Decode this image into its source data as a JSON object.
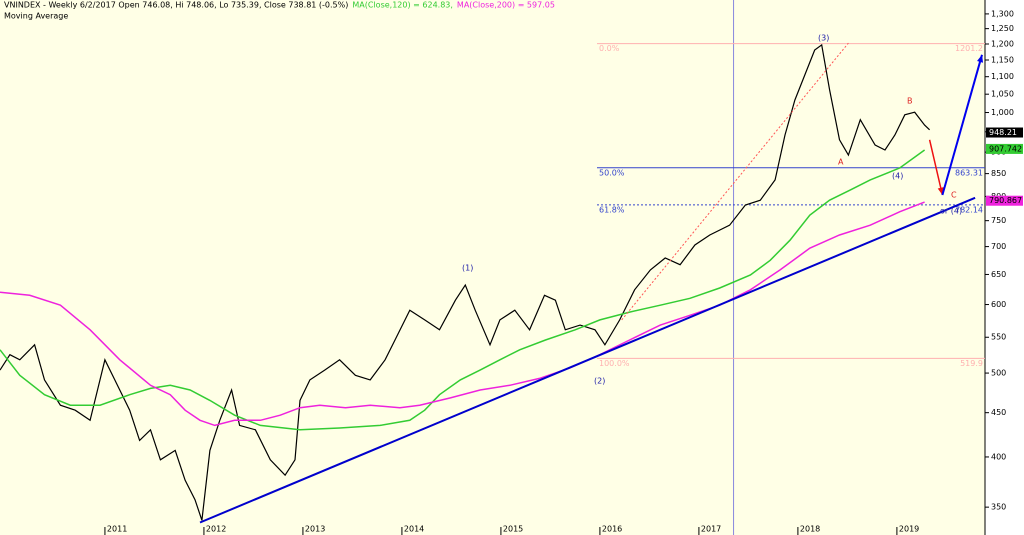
{
  "chart_data": {
    "type": "line",
    "subtitle": "Moving Average",
    "log_scale": true,
    "background": "#ffffe6",
    "xlim": [
      2009.94,
      2019.89
    ],
    "xticks": [
      2011,
      2012,
      2013,
      2014,
      2015,
      2016,
      2017,
      2018,
      2019
    ],
    "ylim": [
      325,
      1349
    ],
    "yticks": [
      350,
      400,
      450,
      500,
      550,
      600,
      650,
      700,
      750,
      800,
      850,
      900,
      950,
      {
        "value": 1000,
        "label": "1,000"
      },
      {
        "value": 1050,
        "label": "1,050"
      },
      {
        "value": 1100,
        "label": "1,100"
      },
      {
        "value": 1150,
        "label": "1,150"
      },
      {
        "value": 1200,
        "label": "1,200"
      },
      {
        "value": 1250,
        "label": "1,250"
      },
      {
        "value": 1300,
        "label": "1,300"
      }
    ],
    "series": [
      {
        "name": "VNINDEX - Weekly 6/2/2017 Open 746.08, Hi 748.06, Lo 735.39, Close 738.81 (-0.5%)",
        "color": "#000000",
        "width": 1.2,
        "last_value": 948.21,
        "x": [
          2009.94,
          2010.04,
          2010.14,
          2010.29,
          2010.39,
          2010.55,
          2010.7,
          2010.85,
          2011.0,
          2011.1,
          2011.25,
          2011.35,
          2011.46,
          2011.56,
          2011.71,
          2011.81,
          2011.91,
          2011.98,
          2012.06,
          2012.16,
          2012.28,
          2012.36,
          2012.52,
          2012.67,
          2012.82,
          2012.92,
          2012.97,
          2013.07,
          2013.22,
          2013.37,
          2013.53,
          2013.68,
          2013.83,
          2013.93,
          2014.08,
          2014.23,
          2014.38,
          2014.54,
          2014.64,
          2014.74,
          2014.89,
          2014.99,
          2015.14,
          2015.29,
          2015.44,
          2015.55,
          2015.65,
          2015.8,
          2015.95,
          2016.05,
          2016.2,
          2016.35,
          2016.51,
          2016.66,
          2016.81,
          2016.96,
          2017.11,
          2017.31,
          2017.47,
          2017.62,
          2017.77,
          2017.87,
          2017.97,
          2018.07,
          2018.17,
          2018.24,
          2018.32,
          2018.42,
          2018.51,
          2018.63,
          2018.78,
          2018.88,
          2018.98,
          2019.08,
          2019.18,
          2019.28,
          2019.33
        ],
        "values": [
          504,
          525,
          518,
          539,
          491,
          459,
          453,
          441,
          518,
          491,
          453,
          418,
          430,
          397,
          407,
          376,
          357,
          338,
          407,
          441,
          478,
          435,
          430,
          397,
          381,
          397,
          465,
          491,
          504,
          518,
          497,
          491,
          518,
          546,
          591,
          576,
          561,
          607,
          632,
          591,
          539,
          576,
          591,
          561,
          615,
          607,
          561,
          568,
          561,
          539,
          576,
          624,
          658,
          679,
          667,
          703,
          722,
          741,
          782,
          792,
          836,
          942,
          1034,
          1105,
          1181,
          1197,
          1062,
          930,
          893,
          981,
          917,
          905,
          942,
          994,
          1001,
          967,
          955
        ]
      },
      {
        "name": "MA(Close,120) = 624.83,",
        "color": "#33cc33",
        "width": 1.5,
        "last_value": 907.742,
        "x": [
          2009.94,
          2010.14,
          2010.39,
          2010.65,
          2010.95,
          2011.25,
          2011.46,
          2011.66,
          2011.86,
          2012.06,
          2012.31,
          2012.57,
          2012.97,
          2013.37,
          2013.78,
          2014.08,
          2014.23,
          2014.38,
          2014.59,
          2014.79,
          2014.99,
          2015.19,
          2015.45,
          2015.75,
          2016.0,
          2016.3,
          2016.61,
          2016.91,
          2017.21,
          2017.52,
          2017.72,
          2017.92,
          2018.12,
          2018.32,
          2018.53,
          2018.73,
          2019.03,
          2019.28
        ],
        "values": [
          532,
          497,
          472,
          459,
          459,
          472,
          480,
          484,
          478,
          465,
          447,
          435,
          430,
          432,
          435,
          441,
          453,
          472,
          491,
          504,
          518,
          532,
          546,
          561,
          576,
          588,
          599,
          610,
          627,
          649,
          675,
          712,
          761,
          792,
          814,
          836,
          863,
          905
        ]
      },
      {
        "name": "MA(Close,200) = 597.05",
        "color": "#ee22dd",
        "width": 1.5,
        "last_value": 790.867,
        "x": [
          2009.94,
          2010.24,
          2010.55,
          2010.85,
          2011.15,
          2011.46,
          2011.66,
          2011.81,
          2011.96,
          2012.11,
          2012.31,
          2012.57,
          2012.77,
          2012.97,
          2013.17,
          2013.43,
          2013.68,
          2013.98,
          2014.18,
          2014.49,
          2014.79,
          2015.09,
          2015.39,
          2015.7,
          2016.0,
          2016.3,
          2016.61,
          2016.91,
          2017.21,
          2017.52,
          2017.82,
          2018.12,
          2018.42,
          2018.73,
          2019.03,
          2019.28
        ],
        "values": [
          620,
          615,
          599,
          561,
          518,
          484,
          472,
          453,
          441,
          435,
          441,
          441,
          447,
          456,
          459,
          456,
          459,
          456,
          459,
          468,
          478,
          484,
          493,
          507,
          525,
          546,
          568,
          583,
          599,
          624,
          658,
          697,
          722,
          741,
          768,
          788
        ]
      }
    ],
    "fib_levels": [
      {
        "label": "0.0%",
        "value": 1201.2,
        "color": "#ffb0b0"
      },
      {
        "label": "50.0%",
        "value": 863.31,
        "color": "#3344cc"
      },
      {
        "label": "61.8%",
        "value": 782.14,
        "color": "#3344cc",
        "dashed": true
      },
      {
        "label": "100.0%",
        "value": 519.9,
        "color": "#ffb0b0"
      }
    ],
    "trendlines": [
      {
        "color": "#0000cc",
        "width": 2,
        "x": [
          2011.96,
          2019.79
        ],
        "values": [
          336,
          797
        ]
      },
      {
        "color": "#ff5555",
        "width": 1,
        "dashed": true,
        "x": [
          2016.22,
          2018.51
        ],
        "values": [
          576,
          1203
        ]
      },
      {
        "color": "#ee1111",
        "width": 1.5,
        "arrow": true,
        "x": [
          2019.33,
          2019.46
        ],
        "values": [
          930,
          803
        ]
      },
      {
        "color": "#0000ee",
        "width": 2,
        "arrow": true,
        "x": [
          2019.46,
          2019.86
        ],
        "values": [
          803,
          1166
        ]
      }
    ],
    "cursor_x": 2017.35,
    "wave_labels": [
      "(1)",
      "(2)",
      "(3)",
      "(4)",
      "A",
      "B",
      "C",
      "or (4)"
    ]
  }
}
